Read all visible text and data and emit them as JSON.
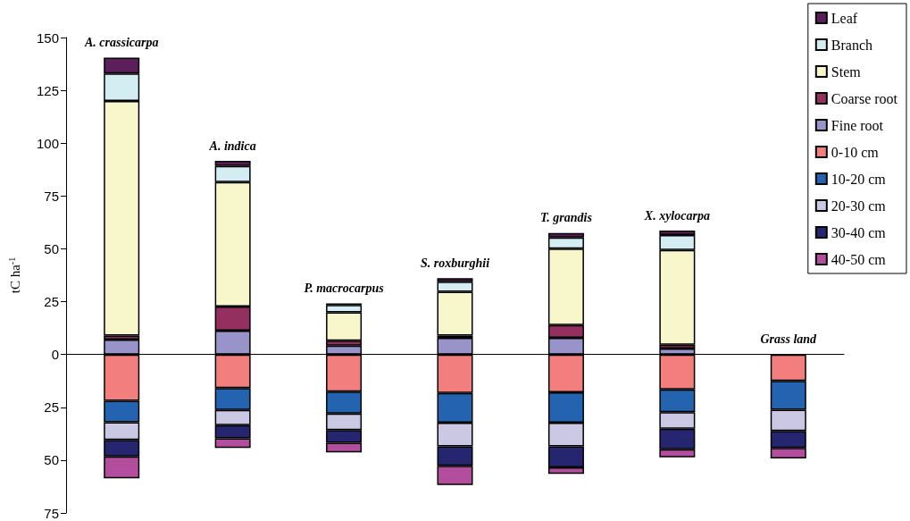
{
  "chart_data": {
    "type": "bar",
    "stacked": true,
    "ylabel": "tC ha$^{-1}$",
    "categories": [
      "A. crassicarpa",
      "A. indica",
      "P. macrocarpus",
      "S. roxburghii",
      "T. grandis",
      "X. xylocarpa",
      "Grass land"
    ],
    "series": [
      {
        "name": "Fine root",
        "color": "#9893c8",
        "values": [
          7,
          11.3,
          4.2,
          7.9,
          7.9,
          2.8,
          null
        ]
      },
      {
        "name": "Coarse root",
        "color": "#93305f",
        "values": [
          2,
          11.4,
          2.3,
          1,
          6,
          1.8,
          null
        ]
      },
      {
        "name": "Stem",
        "color": "#f8f6cb",
        "values": [
          111,
          58.9,
          13.4,
          20.8,
          36.2,
          44.8,
          null
        ]
      },
      {
        "name": "Branch",
        "color": "#d3edf2",
        "values": [
          13,
          7.6,
          3.5,
          4.7,
          5.3,
          7.1,
          null
        ]
      },
      {
        "name": "Leaf",
        "color": "#5c1f5c",
        "values": [
          7.5,
          2.4,
          0.8,
          1.7,
          2.1,
          2.1,
          null
        ]
      },
      {
        "name": "0-10 cm",
        "color": "#f27e7e",
        "values": [
          -21.9,
          -15.9,
          -17.6,
          -18.2,
          -17.9,
          -16.5,
          -12.5
        ]
      },
      {
        "name": "10-20 cm",
        "color": "#2363b0",
        "values": [
          -10.2,
          -10.4,
          -10.3,
          -14.1,
          -14.4,
          -10.8,
          -13.7
        ]
      },
      {
        "name": "20-30 cm",
        "color": "#cbc8e4",
        "values": [
          -8.3,
          -7.1,
          -7.9,
          -11.2,
          -11.2,
          -7.8,
          -10
        ]
      },
      {
        "name": "30-40 cm",
        "color": "#262670",
        "values": [
          -7.8,
          -6.3,
          -6,
          -9.2,
          -9.9,
          -9.8,
          -8
        ]
      },
      {
        "name": "40-50 cm",
        "color": "#b34e9e",
        "values": [
          -10.4,
          -4.5,
          -4.5,
          -9.1,
          -3.1,
          -3.8,
          -5
        ]
      }
    ],
    "ylim": [
      -75,
      150
    ],
    "yticks": [
      {
        "value": -75,
        "label": "75"
      },
      {
        "value": -50,
        "label": "50"
      },
      {
        "value": -25,
        "label": "25"
      },
      0,
      25,
      50,
      75,
      100,
      125,
      150
    ],
    "legend": "top right"
  }
}
